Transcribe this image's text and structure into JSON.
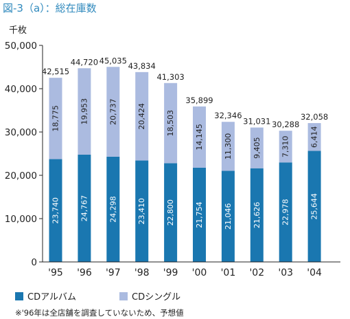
{
  "figure_title": "図-3（a）：総在庫数",
  "unit": "千枚",
  "note": "※'96年は全店舗を調査していないため、予想値",
  "colors": {
    "album": "#1a77b0",
    "single": "#abbbe0",
    "title": "#2f89bd",
    "axis": "#222222"
  },
  "chart_data": {
    "type": "bar",
    "stacked": true,
    "categories": [
      "'95",
      "'96",
      "'97",
      "'98",
      "'99",
      "'00",
      "'01",
      "'02",
      "'03",
      "'04"
    ],
    "series": [
      {
        "name": "CDアルバム",
        "values": [
          23740,
          24767,
          24298,
          23410,
          22800,
          21754,
          21046,
          21626,
          22978,
          25644
        ]
      },
      {
        "name": "CDシングル",
        "values": [
          18775,
          19953,
          20737,
          20424,
          18503,
          14145,
          11300,
          9405,
          7310,
          6414
        ]
      }
    ],
    "value_labels": [
      [
        "23,740",
        "24,767",
        "24,298",
        "23,410",
        "22,800",
        "21,754",
        "21,046",
        "21,626",
        "22,978",
        "25,644"
      ],
      [
        "18,775",
        "19,953",
        "20,737",
        "20,424",
        "18,503",
        "14,145",
        "11,300",
        "9,405",
        "7,310",
        "6,414"
      ]
    ],
    "total_labels": [
      "42,515",
      "44,720",
      "45,035",
      "43,834",
      "41,303",
      "35,899",
      "32,346",
      "31,031",
      "30,288",
      "32,058"
    ],
    "ylim": [
      0,
      50000
    ],
    "yticks": [
      0,
      10000,
      20000,
      30000,
      40000,
      50000
    ],
    "ytick_labels": [
      "0",
      "10,000",
      "20,000",
      "30,000",
      "40,000",
      "50,000"
    ],
    "legend_position": "bottom-left",
    "grid": false
  }
}
